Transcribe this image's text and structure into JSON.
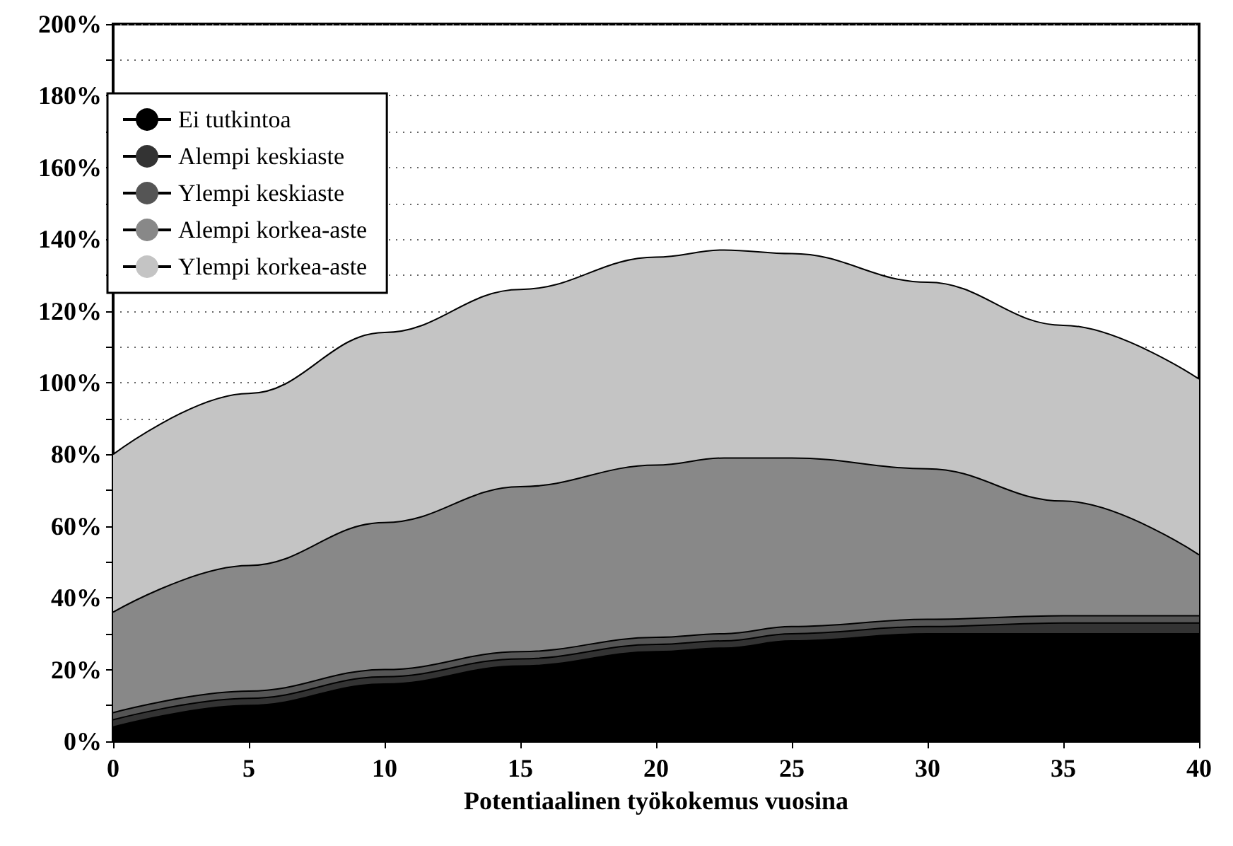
{
  "chart_data": {
    "type": "area",
    "xlabel": "Potentiaalinen työkokemus vuosina",
    "x": [
      0,
      5,
      10,
      15,
      20,
      22.5,
      25,
      30,
      35,
      40
    ],
    "series": [
      {
        "name": "Ei tutkintoa",
        "color": "#000000",
        "values": [
          4,
          10,
          16,
          21,
          25,
          26,
          28,
          30,
          30,
          30
        ]
      },
      {
        "name": "Alempi keskiaste",
        "color": "#333333",
        "values": [
          6,
          12,
          18,
          23,
          27,
          28,
          30,
          32,
          33,
          33
        ]
      },
      {
        "name": "Ylempi keskiaste",
        "color": "#555555",
        "values": [
          8,
          14,
          20,
          25,
          29,
          30,
          32,
          34,
          35,
          35
        ]
      },
      {
        "name": "Alempi korkea-aste",
        "color": "#888888",
        "values": [
          36,
          49,
          61,
          71,
          77,
          79,
          79,
          76,
          67,
          52
        ]
      },
      {
        "name": "Ylempi korkea-aste",
        "color": "#c4c4c4",
        "values": [
          80,
          97,
          114,
          126,
          135,
          137,
          136,
          128,
          116,
          101
        ]
      }
    ],
    "xlim": [
      0,
      40
    ],
    "xticks": [
      0,
      5,
      10,
      15,
      20,
      25,
      30,
      35,
      40
    ],
    "ylim": [
      0,
      200
    ],
    "yticks": [
      {
        "value": 0,
        "label": "0%"
      },
      {
        "value": 10,
        "label": null
      },
      {
        "value": 20,
        "label": "20%"
      },
      {
        "value": 30,
        "label": null
      },
      {
        "value": 40,
        "label": "40%"
      },
      {
        "value": 50,
        "label": null
      },
      {
        "value": 60,
        "label": "60%"
      },
      {
        "value": 70,
        "label": null
      },
      {
        "value": 80,
        "label": "80%"
      },
      {
        "value": 90,
        "label": null
      },
      {
        "value": 100,
        "label": "100%"
      },
      {
        "value": 110,
        "label": null
      },
      {
        "value": 120,
        "label": "120%"
      },
      {
        "value": 130,
        "label": null
      },
      {
        "value": 140,
        "label": "140%"
      },
      {
        "value": 150,
        "label": null
      },
      {
        "value": 160,
        "label": "160%"
      },
      {
        "value": 170,
        "label": null
      },
      {
        "value": 180,
        "label": "180%"
      },
      {
        "value": 190,
        "label": null
      },
      {
        "value": 200,
        "label": "200%"
      }
    ],
    "grid": "y",
    "legend": "top left"
  }
}
